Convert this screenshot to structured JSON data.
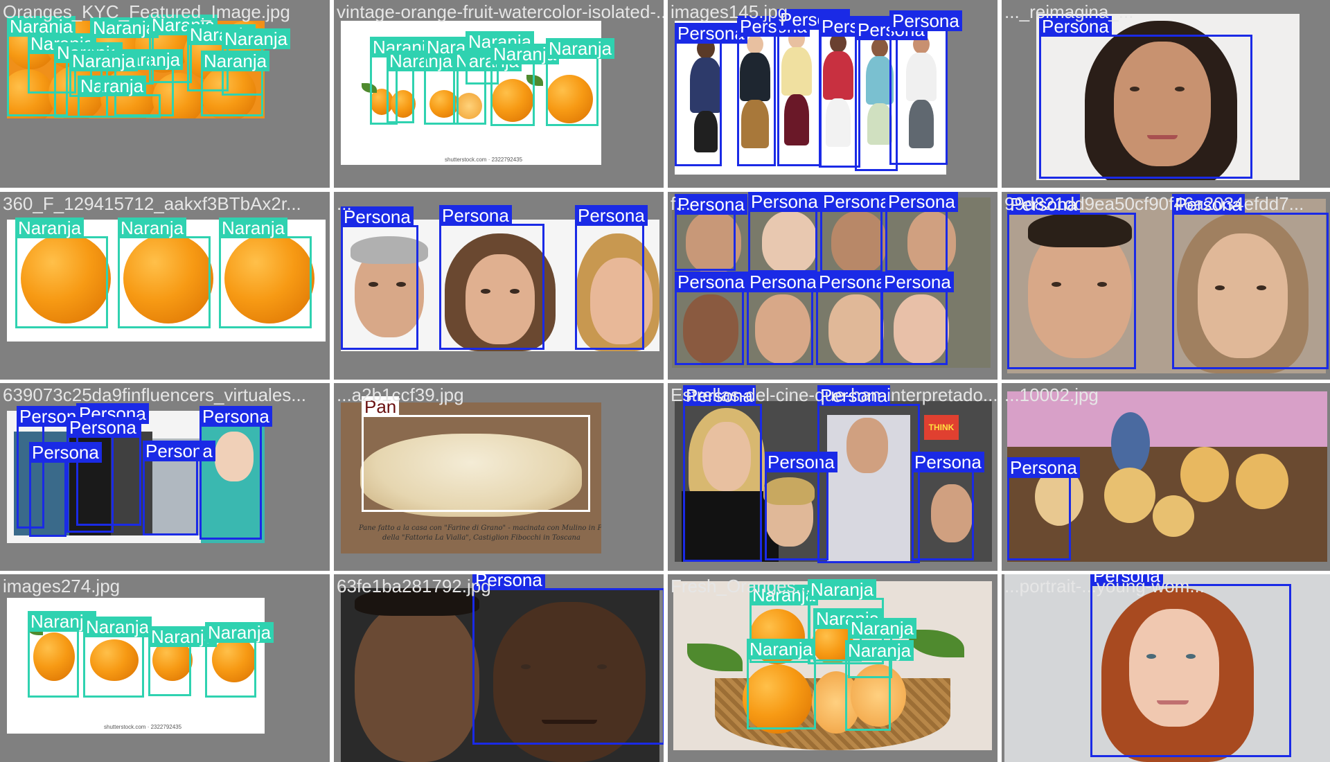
{
  "tiles": [
    {
      "filename": "Oranges_KYC_Featured_Image.jpg",
      "labels": [
        "Naranja",
        "Naranja",
        "Naranja",
        "Naranja",
        "Naranja",
        "Naranja",
        "Naranja",
        "Naranja",
        "Naranja",
        "Naranja",
        "Naranja"
      ]
    },
    {
      "filename": "vintage-orange-fruit-watercolor-isolated-...",
      "watermark": "shutterstock.com · 2322792435",
      "labels": [
        "Naranja",
        "Naranja",
        "Naranja",
        "Naranja",
        "Naranja",
        "Naranja",
        "Naranja"
      ]
    },
    {
      "filename": "images145.jpg",
      "labels": [
        "Persona",
        "Persona",
        "Persona",
        "Persona",
        "Persona",
        "Persona"
      ]
    },
    {
      "filename": "..._reimagina_...",
      "labels": [
        "Persona"
      ]
    },
    {
      "filename": "360_F_129415712_aakxf3BTbAx2r...",
      "labels": [
        "Naranja",
        "Naranja",
        "Naranja"
      ]
    },
    {
      "filename": "...",
      "labels": [
        "Persona",
        "Persona",
        "Persona"
      ]
    },
    {
      "filename": "f...",
      "labels": [
        "Persona",
        "Persona",
        "Persona",
        "Persona",
        "Persona",
        "Persona",
        "Persona",
        "Persona"
      ]
    },
    {
      "filename": "99d821dd9ea50cf90f46a2034efdd7...",
      "labels": [
        "Persona",
        "Persona"
      ]
    },
    {
      "filename": "639073c25da9finfluencers_virtuales...",
      "labels": [
        "Persona",
        "Persona",
        "Persona",
        "Persona",
        "Persona",
        "Persona"
      ]
    },
    {
      "filename": "...a2b1ccf39.jpg",
      "caption": [
        "Pane fatto a la casa con \"Farine di Grano\" - macinata con Mulino in Pietra -",
        "della \"Fattoria La Vialla\", Castiglion Fibocchi in Toscana"
      ],
      "labels": [
        "Pan"
      ]
    },
    {
      "filename": "Estrellas-del-cine-que-han-interpretado...",
      "poster_text": "THINK",
      "labels": [
        "Persona",
        "Persona",
        "Persona",
        "Persona"
      ]
    },
    {
      "filename": "...10002.jpg",
      "labels": [
        "Persona"
      ]
    },
    {
      "filename": "images274.jpg",
      "watermark": "shutterstock.com · 2322792435",
      "labels": [
        "Naranja",
        "Naranja",
        "Naranja",
        "Naranja"
      ]
    },
    {
      "filename": "63fe1ba281792.jpg",
      "labels": [
        "Persona"
      ]
    },
    {
      "filename": "Fresh_Oranges...",
      "labels": [
        "Naranja",
        "Naranja",
        "Naranja",
        "Naranja",
        "Naranja",
        "Naranja"
      ]
    },
    {
      "filename": "...portrait-...young-wom...",
      "labels": [
        "Persona"
      ]
    }
  ],
  "colors": {
    "naranja": "#2fd2b0",
    "persona": "#1a2ae6",
    "pan_label_text": "#6a1010",
    "tile_bg": "#808080"
  }
}
